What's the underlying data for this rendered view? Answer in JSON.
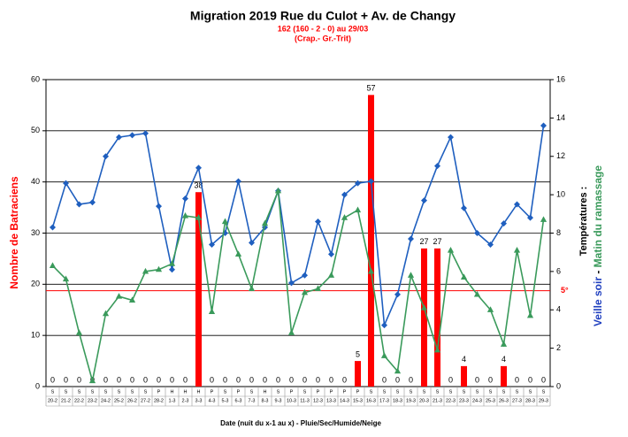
{
  "chart_data": {
    "type": "combo",
    "title": "Migration 2019  Rue du Culot + Av. de Changy",
    "subtitle": [
      "162 (160 - 2 - 0) au 29/03",
      "(Crap.- Gr.-Trit)"
    ],
    "xlabel": "Date (nuit du x-1 au x) - Pluie/Sec/Humide/Neige",
    "ylabel": "Nombre de Batraciens",
    "y2label": [
      "Températures :",
      "Veille soir",
      "-",
      "Matin du ramassage"
    ],
    "categories": [
      "20-2",
      "21-2",
      "22-2",
      "23-2",
      "24-2",
      "25-2",
      "26-2",
      "27-2",
      "28-2",
      "1-3",
      "2-3",
      "3-3",
      "4-3",
      "5-3",
      "6-3",
      "7-3",
      "8-3",
      "9-3",
      "10-3",
      "11-3",
      "12-3",
      "13-3",
      "14-3",
      "15-3",
      "16-3",
      "17-3",
      "18-3",
      "19-3",
      "20-3",
      "21-3",
      "22-3",
      "23-3",
      "24-3",
      "25-3",
      "26-3",
      "27-3",
      "28-3",
      "29-3"
    ],
    "weather": [
      "S",
      "S",
      "S",
      "S",
      "S",
      "S",
      "S",
      "S",
      "P",
      "H",
      "H",
      "H",
      "P",
      "S",
      "P",
      "S",
      "H",
      "S",
      "P",
      "S",
      "P",
      "P",
      "P",
      "P",
      "S",
      "S",
      "S",
      "S",
      "S",
      "S",
      "S",
      "S",
      "S",
      "S",
      "S",
      "S",
      "S",
      "S"
    ],
    "series": [
      {
        "type": "bar",
        "color": "#ff0000",
        "values": [
          0,
          0,
          0,
          0,
          0,
          0,
          0,
          0,
          0,
          0,
          0,
          38,
          0,
          0,
          0,
          0,
          0,
          0,
          0,
          0,
          0,
          0,
          0,
          5,
          57,
          0,
          0,
          0,
          27,
          27,
          0,
          4,
          0,
          0,
          4,
          0,
          0,
          0
        ]
      },
      {
        "type": "line",
        "marker": "diamond",
        "axis": "y2",
        "color": "#1f5fbf",
        "values": [
          8.3,
          10.6,
          9.5,
          9.6,
          12.0,
          13.0,
          13.1,
          13.2,
          9.4,
          6.1,
          9.8,
          11.4,
          7.4,
          8.0,
          10.7,
          7.5,
          8.3,
          10.2,
          5.4,
          5.8,
          8.6,
          6.9,
          10.0,
          10.6,
          10.7,
          3.2,
          4.8,
          7.7,
          9.7,
          11.5,
          13.0,
          9.3,
          8.0,
          7.4,
          8.5,
          9.5,
          8.8,
          13.6
        ]
      },
      {
        "type": "line",
        "marker": "triangle",
        "axis": "y2",
        "color": "#3a9a5b",
        "values": [
          6.3,
          5.6,
          2.8,
          0.3,
          3.8,
          4.7,
          4.5,
          6.0,
          6.1,
          6.4,
          8.9,
          8.8,
          3.9,
          8.6,
          6.9,
          5.1,
          8.5,
          10.2,
          2.8,
          4.9,
          5.1,
          5.8,
          8.8,
          9.2,
          6.0,
          1.6,
          0.8,
          5.8,
          4.1,
          1.9,
          7.1,
          5.7,
          4.8,
          4.0,
          2.2,
          7.1,
          3.7,
          8.7
        ]
      }
    ],
    "ylim": [
      0,
      60
    ],
    "yticks": [
      0,
      10,
      20,
      30,
      40,
      50,
      60
    ],
    "y2lim": [
      0,
      16
    ],
    "y2ticks": [
      0,
      2,
      4,
      6,
      8,
      10,
      12,
      14,
      16
    ],
    "grid": true,
    "reference_line": {
      "value": 5,
      "axis": "y2",
      "label": "5°",
      "color": "#ff0000"
    }
  }
}
